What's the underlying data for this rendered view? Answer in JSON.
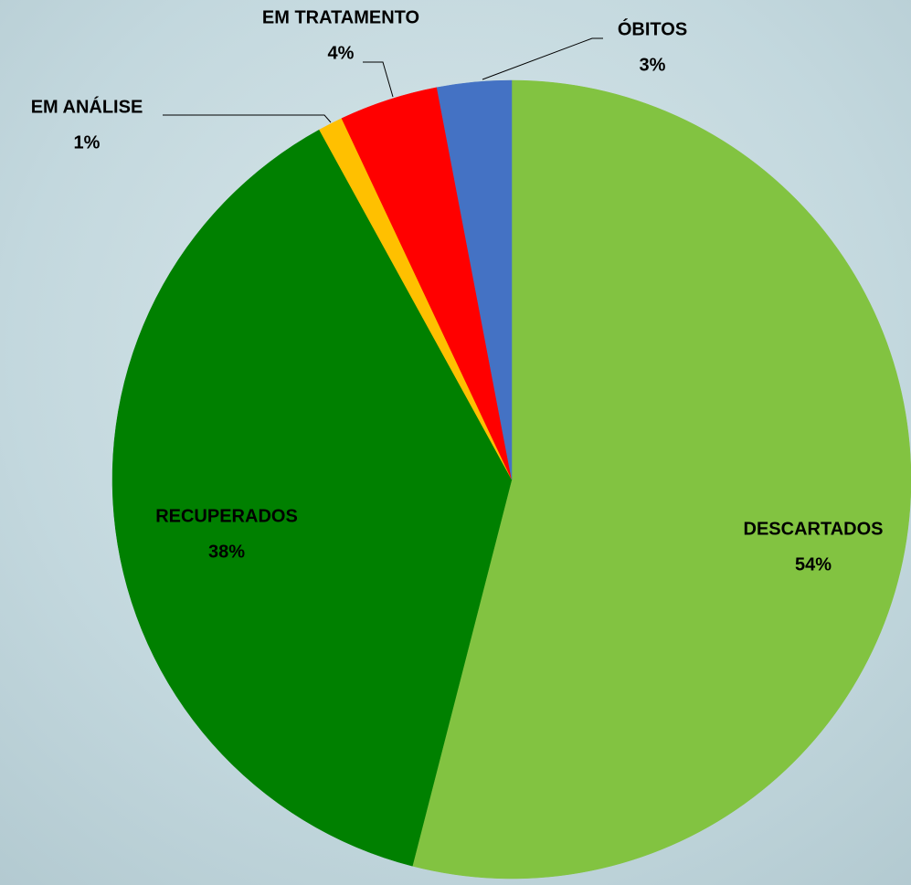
{
  "chart_data": {
    "type": "pie",
    "categories": [
      "DESCARTADOS",
      "RECUPERADOS",
      "EM ANÁLISE",
      "EM TRATAMENTO",
      "ÓBITOS"
    ],
    "values": [
      54,
      38,
      1,
      4,
      3
    ],
    "value_labels": [
      "54%",
      "38%",
      "1%",
      "4%",
      "3%"
    ],
    "colors": [
      "#82c341",
      "#008000",
      "#ffc000",
      "#ff0000",
      "#4472c4"
    ]
  }
}
